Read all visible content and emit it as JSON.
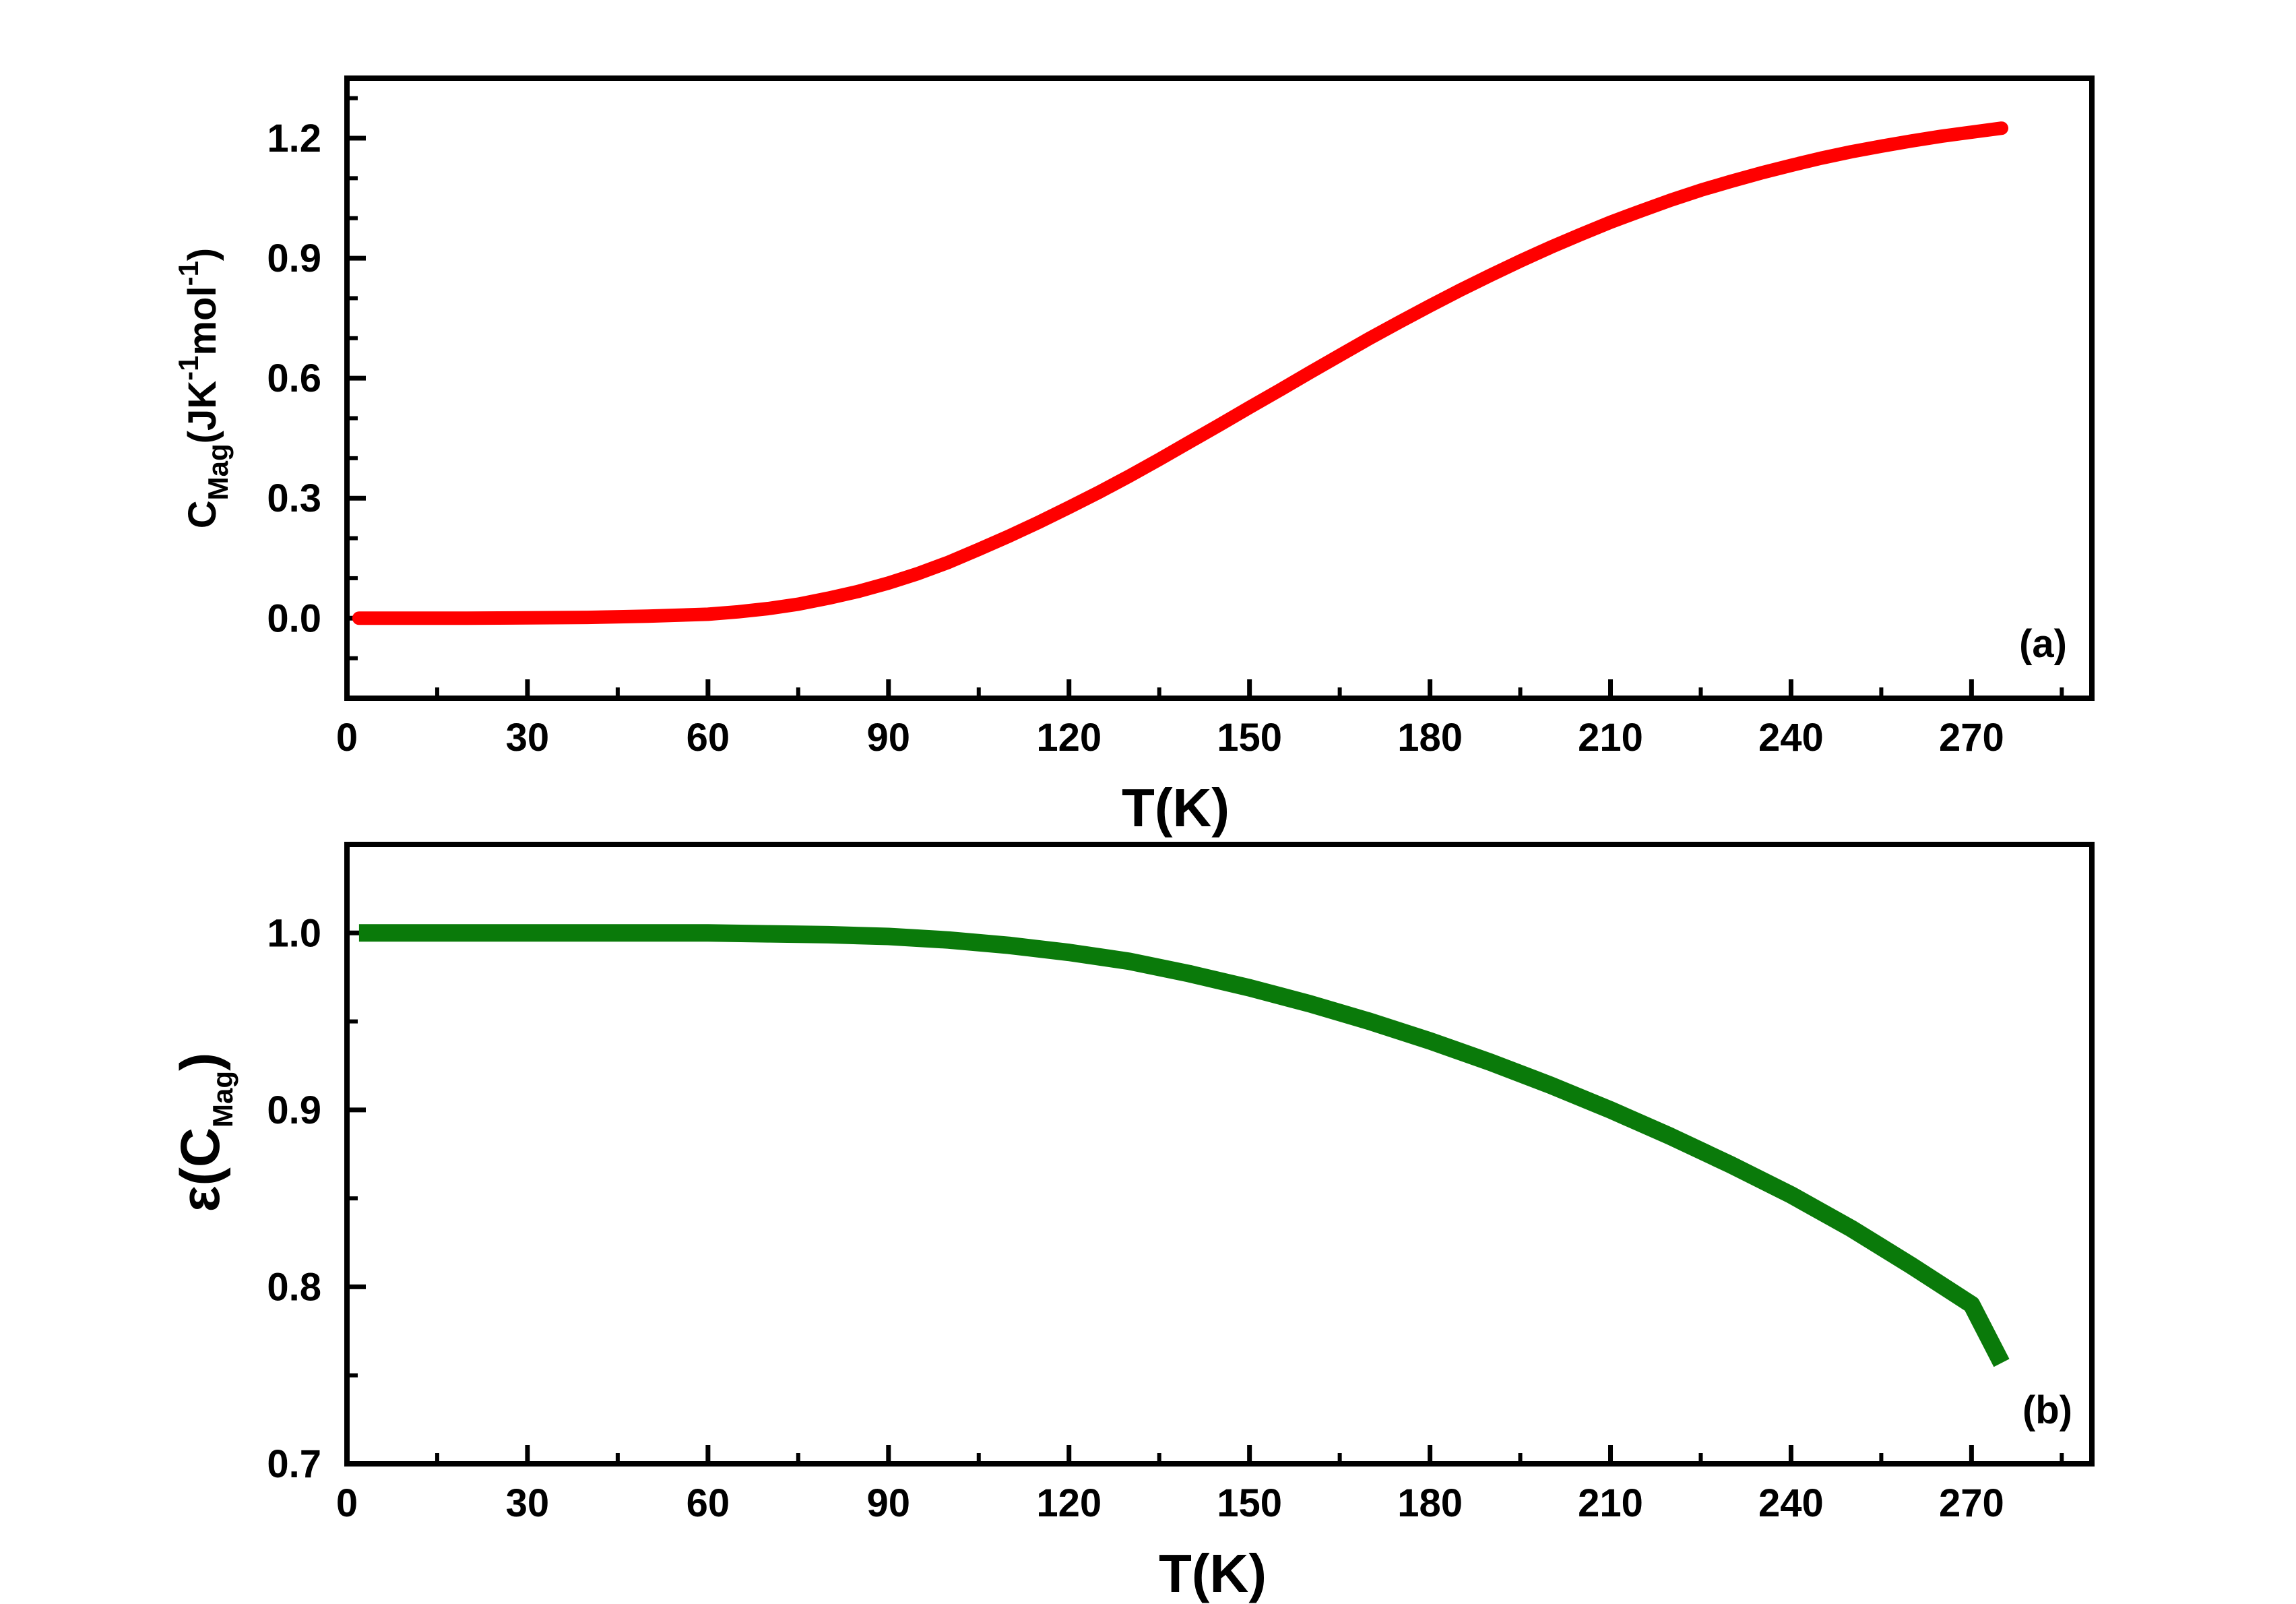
{
  "chart_data": [
    {
      "type": "line",
      "panel_label": "(a)",
      "xlabel": "T(K)",
      "ylabel": {
        "main": "C",
        "sub": "Mag",
        "unit_open": "(JK",
        "sup1": "-1",
        "mol": "mol",
        "sup2": "-1",
        "unit_close": ")"
      },
      "xlim": [
        0,
        290
      ],
      "ylim": [
        -0.2,
        1.35
      ],
      "xticks": [
        0,
        30,
        60,
        90,
        120,
        150,
        180,
        210,
        240,
        270
      ],
      "yticks": [
        0.0,
        0.3,
        0.6,
        0.9,
        1.2
      ],
      "ytick_labels": [
        "0.0",
        "0.3",
        "0.6",
        "0.9",
        "1.2"
      ],
      "color": "#ff0000",
      "series": [
        {
          "name": "C_Mag",
          "x": [
            2,
            20,
            40,
            50,
            60,
            65,
            70,
            75,
            80,
            85,
            90,
            95,
            100,
            105,
            110,
            115,
            120,
            125,
            130,
            135,
            140,
            145,
            150,
            155,
            160,
            165,
            170,
            175,
            180,
            185,
            190,
            195,
            200,
            205,
            210,
            215,
            220,
            225,
            230,
            235,
            240,
            245,
            250,
            255,
            260,
            265,
            270,
            275
          ],
          "y": [
            0.0,
            0.0,
            0.002,
            0.005,
            0.01,
            0.016,
            0.024,
            0.035,
            0.05,
            0.067,
            0.088,
            0.112,
            0.14,
            0.172,
            0.205,
            0.24,
            0.277,
            0.315,
            0.355,
            0.397,
            0.44,
            0.483,
            0.527,
            0.57,
            0.614,
            0.657,
            0.7,
            0.741,
            0.781,
            0.82,
            0.857,
            0.893,
            0.927,
            0.959,
            0.99,
            1.018,
            1.045,
            1.07,
            1.092,
            1.113,
            1.132,
            1.15,
            1.166,
            1.18,
            1.193,
            1.205,
            1.215,
            1.225
          ]
        }
      ]
    },
    {
      "type": "line",
      "panel_label": "(b)",
      "xlabel": "T(K)",
      "ylabel": {
        "main": "ε(C",
        "sub": "Mag",
        "unit_close": ")"
      },
      "xlim": [
        0,
        290
      ],
      "ylim": [
        0.7,
        1.05
      ],
      "xticks": [
        0,
        30,
        60,
        90,
        120,
        150,
        180,
        210,
        240,
        270
      ],
      "yticks": [
        0.7,
        0.8,
        0.9,
        1.0
      ],
      "ytick_labels": [
        "0.7",
        "0.8",
        "0.9",
        "1.0"
      ],
      "color": "#0a7a0a",
      "series": [
        {
          "name": "epsilon(C_Mag)",
          "x": [
            2,
            20,
            40,
            60,
            70,
            80,
            90,
            100,
            110,
            120,
            130,
            140,
            150,
            160,
            170,
            180,
            190,
            200,
            210,
            220,
            230,
            240,
            250,
            260,
            270,
            275
          ],
          "y": [
            1.0,
            1.0,
            1.0,
            1.0,
            0.9995,
            0.999,
            0.998,
            0.996,
            0.993,
            0.989,
            0.984,
            0.977,
            0.969,
            0.96,
            0.95,
            0.939,
            0.927,
            0.914,
            0.9,
            0.885,
            0.869,
            0.852,
            0.833,
            0.812,
            0.79,
            0.757
          ]
        }
      ]
    }
  ]
}
